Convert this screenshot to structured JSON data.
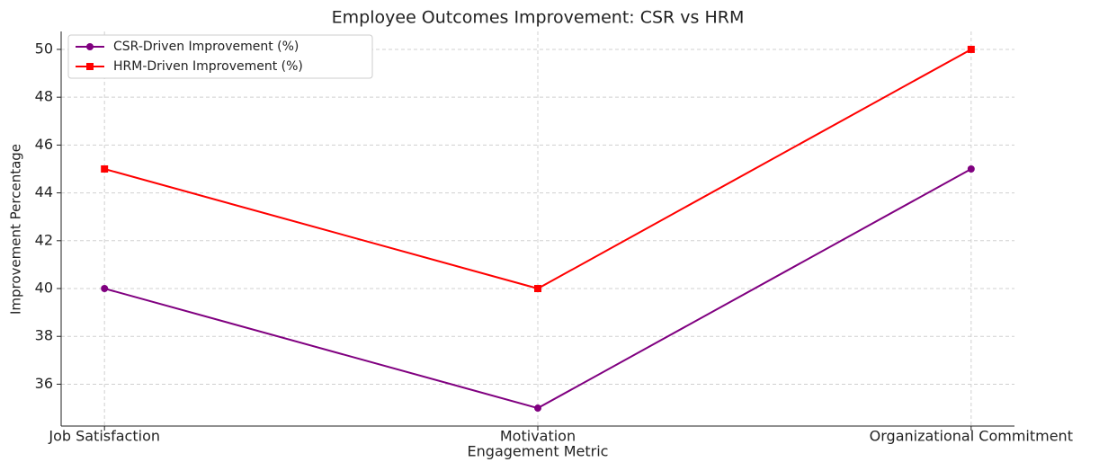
{
  "chart_data": {
    "type": "line",
    "title": "Employee Outcomes Improvement: CSR vs HRM",
    "x_label": "Engagement Metric",
    "y_label": "Improvement Percentage",
    "categories": [
      "Job Satisfaction",
      "Motivation",
      "Organizational Commitment"
    ],
    "series": [
      {
        "name": "CSR-Driven Improvement (%)",
        "color": "#800080",
        "marker": "circle",
        "values": [
          40,
          35,
          45
        ]
      },
      {
        "name": "HRM-Driven Improvement (%)",
        "color": "#ff0000",
        "marker": "square",
        "values": [
          45,
          40,
          50
        ]
      }
    ],
    "ylim": [
      34.25,
      50.75
    ],
    "yticks": [
      36,
      38,
      40,
      42,
      44,
      46,
      48,
      50
    ],
    "grid": true,
    "legend": "upper left"
  }
}
